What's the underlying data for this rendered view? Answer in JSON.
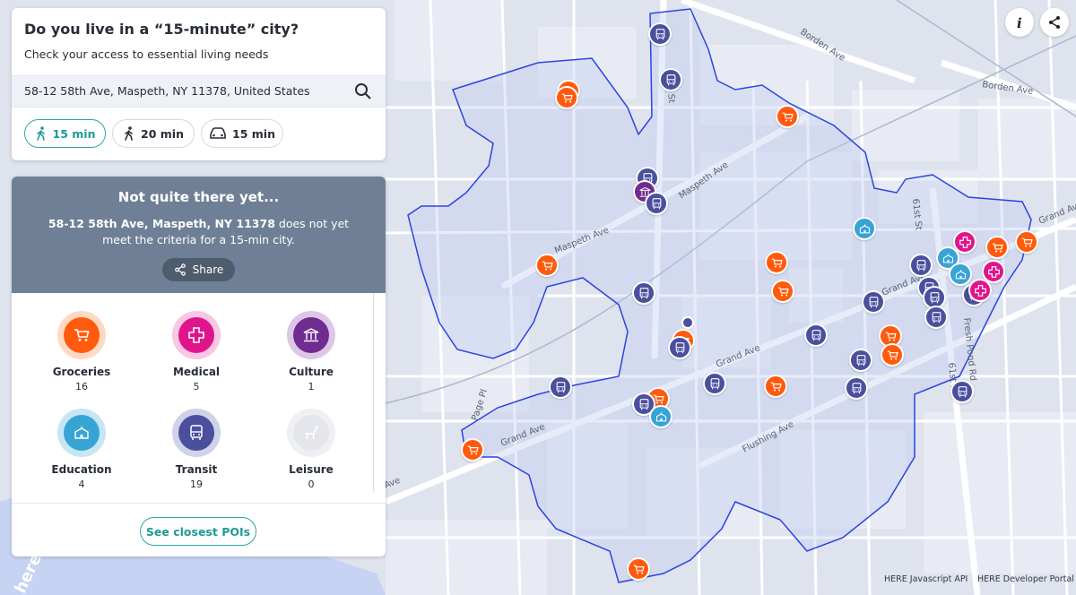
{
  "panel": {
    "title": "Do you live in a “15-minute” city?",
    "subtitle": "Check your access to essential living needs",
    "address": "58-12 58th Ave, Maspeth, NY 11378, United States",
    "modes": [
      {
        "label": "15 min",
        "icon": "walking-icon",
        "active": true
      },
      {
        "label": "20 min",
        "icon": "walking-icon",
        "active": false
      },
      {
        "label": "15 min",
        "icon": "car-icon",
        "active": false
      }
    ]
  },
  "status": {
    "title": "Not quite there yet...",
    "address_bold": "58-12 58th Ave, Maspeth, NY 11378",
    "message": " does not yet meet the criteria for a 15-min city.",
    "share_label": "Share"
  },
  "categories": [
    {
      "name": "Groceries",
      "count": "16",
      "icon": "shopping-cart-icon",
      "color": "#ff5a0d",
      "ring": "#ffd9c4"
    },
    {
      "name": "Medical",
      "count": "5",
      "icon": "medical-cross-icon",
      "color": "#e0158c",
      "ring": "#f8c7e3"
    },
    {
      "name": "Culture",
      "count": "1",
      "icon": "museum-icon",
      "color": "#702b90",
      "ring": "#dcc7e6"
    },
    {
      "name": "Education",
      "count": "4",
      "icon": "school-icon",
      "color": "#38a4d6",
      "ring": "#c7e6f4"
    },
    {
      "name": "Transit",
      "count": "19",
      "icon": "bus-icon",
      "color": "#4a4f9e",
      "ring": "#d0d2ea"
    },
    {
      "name": "Leisure",
      "count": "0",
      "icon": "leisure-icon",
      "color": "#e4e6ec",
      "ring": "#eef0f4"
    }
  ],
  "closest_pois_label": "See closest POIs",
  "map": {
    "street_labels": [
      "Borden Ave",
      "Borden Ave",
      "Grand Ave",
      "Grand Ave",
      "Grand Ave",
      "Flushing Ave",
      "Maspeth Ave",
      "Rust St",
      "Fresh Pond Rd",
      "61st St",
      "61st St",
      "Page Pl",
      "Grand Ave",
      "Ave",
      "Maspeth Ave"
    ],
    "attribution": [
      "HERE Javascript API",
      "HERE Developer Portal"
    ],
    "logo": "here"
  },
  "colors": {
    "accent": "#2aa7a3",
    "isoline": "#2b45e0",
    "banner": "#6f8096"
  }
}
